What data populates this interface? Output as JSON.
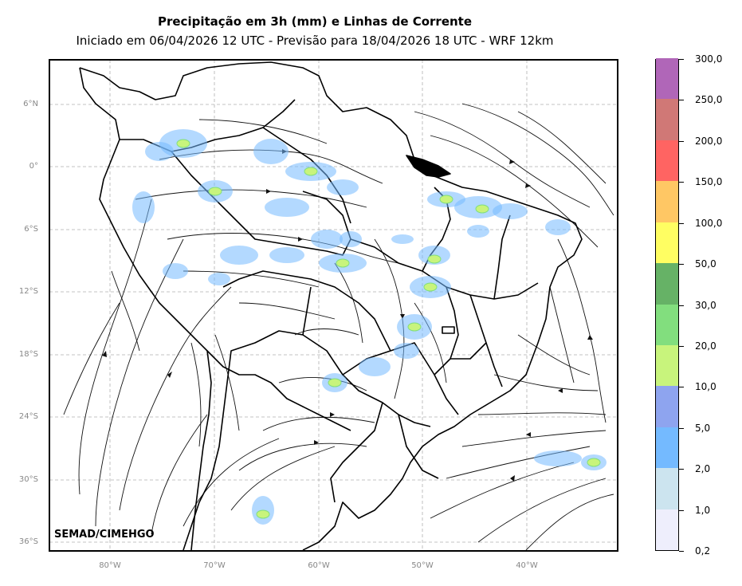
{
  "title": "Precipitação em 3h (mm) e Linhas de Corrente",
  "subtitle": "Iniciado em 06/04/2026 12 UTC - Previsão para 18/04/2026 18 UTC - WRF 12km",
  "credit": "SEMAD/CIMEHGO",
  "lat_labels": [
    "6°N",
    "0°",
    "6°S",
    "12°S",
    "18°S",
    "24°S",
    "30°S",
    "36°S"
  ],
  "lon_labels": [
    "80°W",
    "70°W",
    "60°W",
    "50°W",
    "40°W"
  ],
  "colorbar": {
    "levels": [
      "0,2",
      "1,0",
      "2,0",
      "5,0",
      "10,0",
      "20,0",
      "30,0",
      "50,0",
      "100,0",
      "150,0",
      "200,0",
      "250,0",
      "300,0"
    ],
    "colors": [
      "#eeeefc",
      "#cce4ef",
      "#74baff",
      "#8ea4ef",
      "#c8f47c",
      "#82de7e",
      "#66b266",
      "#fffe62",
      "#ffc764",
      "#ff6462",
      "#d07876",
      "#b066b8"
    ]
  },
  "colors": {
    "land_outline": "#000000",
    "streamline": "#111111",
    "grid": "#b0b0b0",
    "precip_light": "#74baff",
    "precip_moderate": "#c8f47c",
    "precip_heavy": "#82de7e"
  }
}
